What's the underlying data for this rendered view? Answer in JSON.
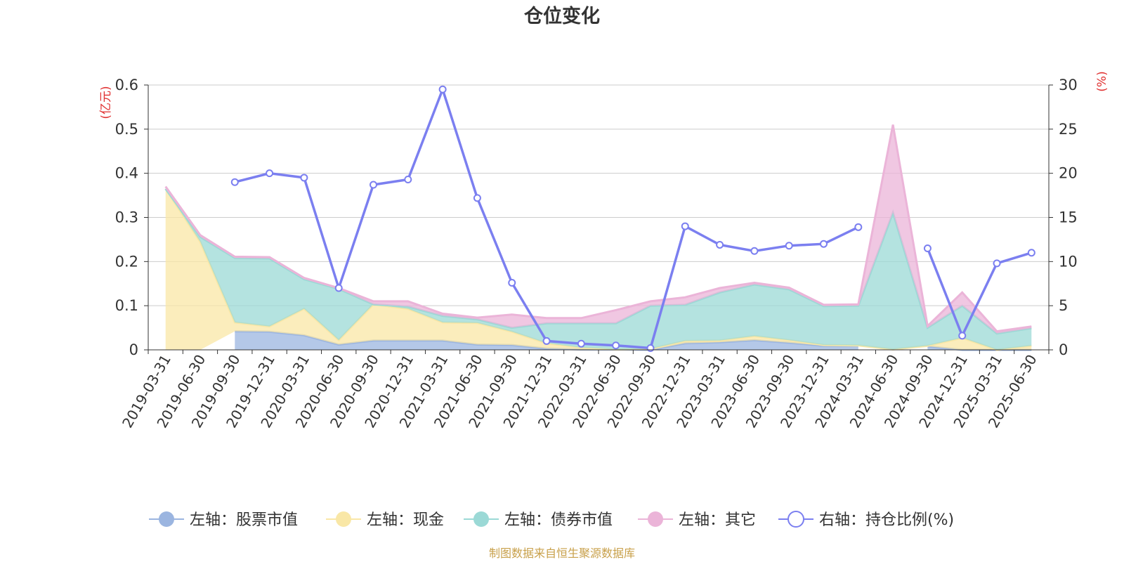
{
  "chart_data": {
    "type": "area",
    "title": "仓位变化",
    "left_unit": "(亿元)",
    "right_unit": "(%)",
    "left_ylim": [
      0,
      0.6
    ],
    "left_ticks": [
      "0",
      "0.1",
      "0.2",
      "0.3",
      "0.4",
      "0.5",
      "0.6"
    ],
    "right_ylim": [
      0,
      30
    ],
    "right_ticks": [
      "0",
      "5",
      "10",
      "15",
      "20",
      "25",
      "30"
    ],
    "grid": true,
    "categories": [
      "2019-03-31",
      "2019-06-30",
      "2019-09-30",
      "2019-12-31",
      "2020-03-31",
      "2020-06-30",
      "2020-09-30",
      "2020-12-31",
      "2021-03-31",
      "2021-06-30",
      "2021-09-30",
      "2021-12-31",
      "2022-03-31",
      "2022-06-30",
      "2022-09-30",
      "2022-12-31",
      "2023-03-31",
      "2023-06-30",
      "2023-09-30",
      "2023-12-31",
      "2024-03-31",
      "2024-06-30",
      "2024-09-30",
      "2024-12-31",
      "2025-03-31",
      "2025-06-30"
    ],
    "series": [
      {
        "name": "左轴：股票市值",
        "axis": "left",
        "stacked": true,
        "color": "#9bb5e0",
        "values": [
          null,
          null,
          0.042,
          0.041,
          0.033,
          0.012,
          0.021,
          0.021,
          0.021,
          0.012,
          0.011,
          0.003,
          0.001,
          0.001,
          0.0,
          0.015,
          0.017,
          0.022,
          0.016,
          0.009,
          0.009,
          null,
          0.008,
          0.0,
          0.0,
          0.0
        ]
      },
      {
        "name": "左轴：现金",
        "axis": "left",
        "stacked": true,
        "color": "#f9e7a6",
        "values": [
          0.365,
          0.245,
          0.02,
          0.012,
          0.06,
          0.01,
          0.082,
          0.072,
          0.041,
          0.049,
          0.03,
          0.012,
          0.004,
          0.0,
          0.002,
          0.005,
          0.004,
          0.009,
          0.006,
          0.002,
          0.001,
          0.001,
          0.001,
          0.027,
          0.0,
          0.009
        ]
      },
      {
        "name": "左轴：债券市值",
        "axis": "left",
        "stacked": true,
        "color": "#9bd9d6",
        "values": [
          0.0,
          0.011,
          0.146,
          0.154,
          0.067,
          0.116,
          0.0,
          0.005,
          0.015,
          0.008,
          0.009,
          0.045,
          0.055,
          0.059,
          0.098,
          0.082,
          0.109,
          0.117,
          0.115,
          0.088,
          0.09,
          0.31,
          0.041,
          0.073,
          0.037,
          0.04
        ]
      },
      {
        "name": "左轴：其它",
        "axis": "left",
        "stacked": true,
        "color": "#ebb4d8",
        "values": [
          0.005,
          0.004,
          0.003,
          0.003,
          0.003,
          0.002,
          0.007,
          0.012,
          0.005,
          0.004,
          0.03,
          0.012,
          0.012,
          0.03,
          0.01,
          0.017,
          0.01,
          0.004,
          0.004,
          0.003,
          0.003,
          0.199,
          0.004,
          0.03,
          0.005,
          0.004
        ]
      },
      {
        "name": "右轴：持仓比例(%)",
        "axis": "right",
        "stacked": false,
        "color": "#7b7ff0",
        "values": [
          null,
          null,
          19.0,
          20.0,
          19.5,
          7.0,
          18.7,
          19.3,
          29.5,
          17.2,
          7.6,
          1.0,
          0.7,
          0.5,
          0.2,
          14.0,
          11.9,
          11.2,
          11.8,
          12.0,
          13.9,
          null,
          11.5,
          1.6,
          9.8,
          11.0
        ]
      }
    ]
  },
  "legend": [
    {
      "label": "左轴：股票市值",
      "color": "#9bb5e0",
      "kind": "area"
    },
    {
      "label": "左轴：现金",
      "color": "#f9e7a6",
      "kind": "area"
    },
    {
      "label": "左轴：债券市值",
      "color": "#9bd9d6",
      "kind": "area"
    },
    {
      "label": "左轴：其它",
      "color": "#ebb4d8",
      "kind": "area"
    },
    {
      "label": "右轴：持仓比例(%)",
      "color": "#7b7ff0",
      "kind": "line"
    }
  ],
  "source": "制图数据来自恒生聚源数据库",
  "colors": {
    "unit": "#e03030",
    "source": "#c8a04a",
    "grid": "#cccccc",
    "axis": "#333333"
  }
}
